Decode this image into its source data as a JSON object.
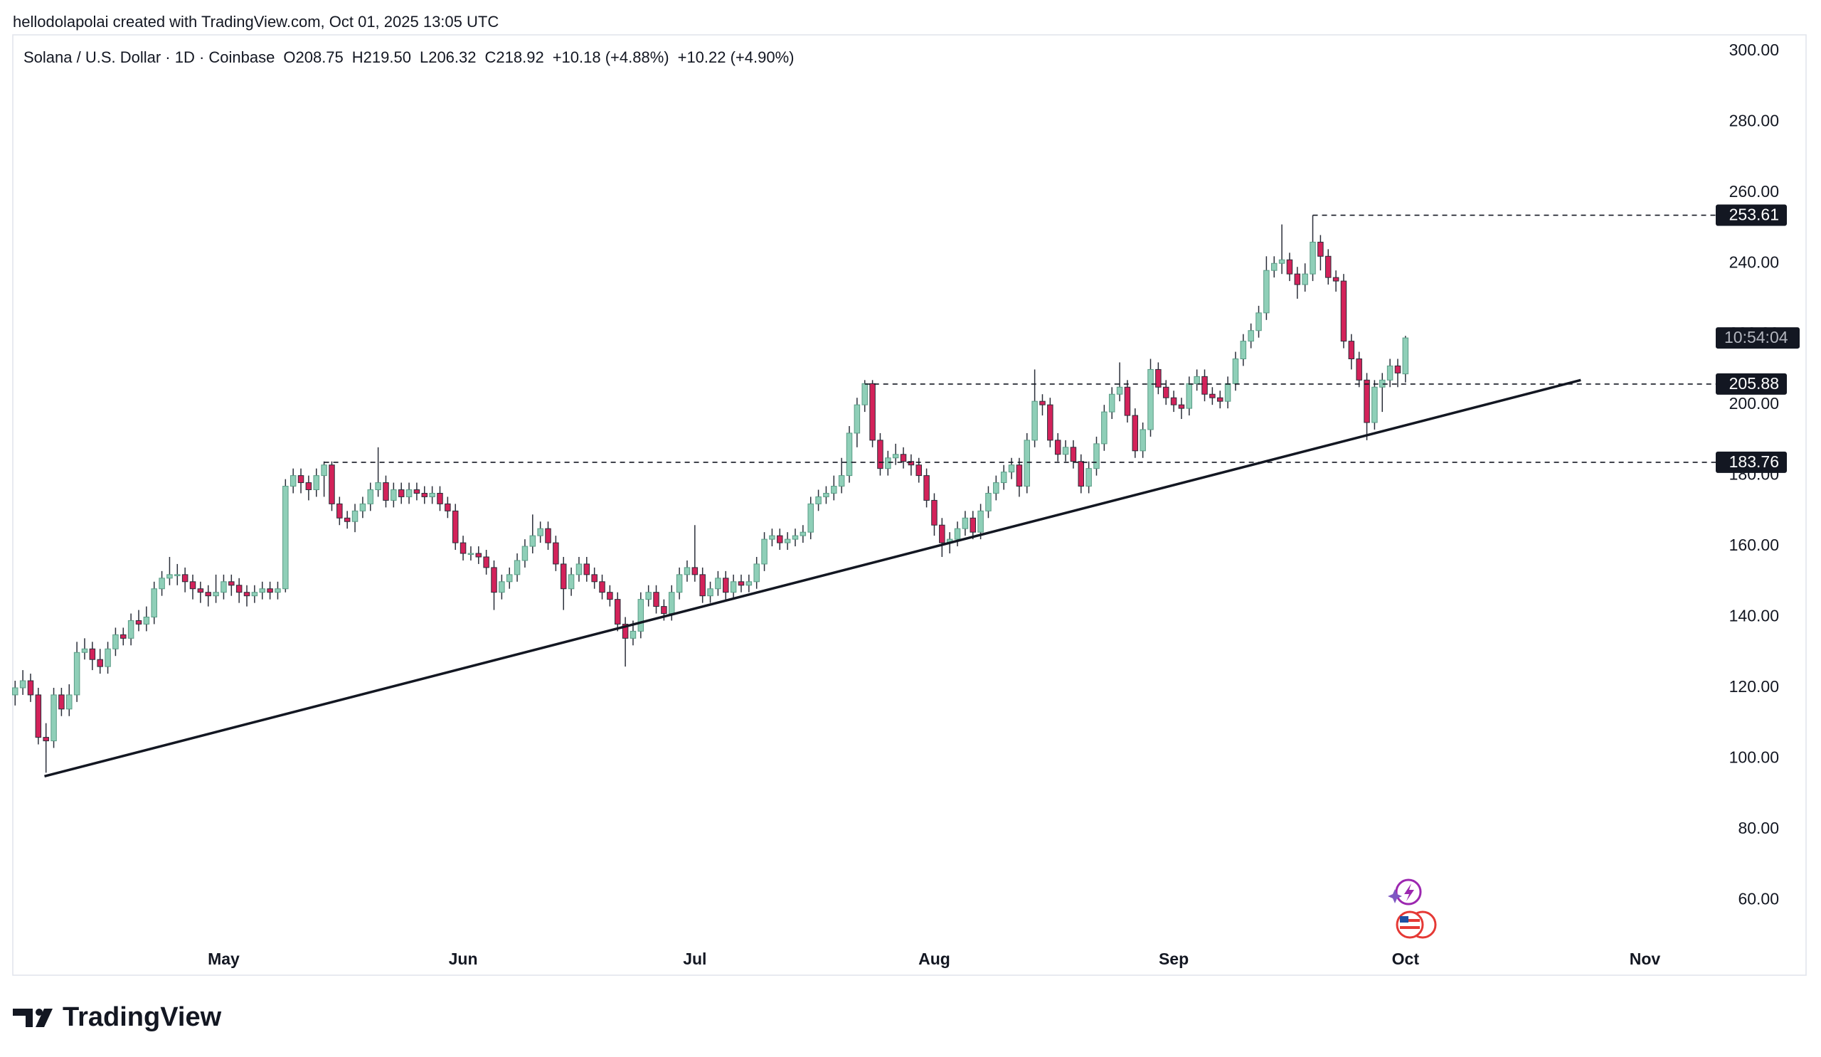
{
  "header": "hellodolapolai created with TradingView.com, Oct 01, 2025 13:05 UTC",
  "branding": "TradingView",
  "chart_data": {
    "type": "candlestick",
    "title": "Solana / U.S. Dollar · 1D · Coinbase",
    "legend_values": [
      "O208.75",
      "H219.50",
      "L206.32",
      "C218.92",
      "+10.18 (+4.88%)",
      "+10.22 (+4.90%)"
    ],
    "open": [
      118,
      120,
      122,
      118,
      106,
      105,
      118,
      114,
      118,
      130,
      131,
      128,
      126,
      131,
      135,
      134,
      139,
      138,
      140,
      148,
      151,
      152,
      152,
      150,
      148,
      147,
      146,
      147,
      150,
      149,
      147,
      146,
      147,
      148,
      147,
      148,
      177,
      180,
      178,
      176,
      180,
      183,
      172,
      168,
      167,
      170,
      172,
      176,
      178,
      173,
      176,
      174,
      176,
      175,
      174,
      175,
      172,
      170,
      161,
      158,
      158,
      157,
      154,
      147,
      150,
      152,
      156,
      160,
      163,
      165,
      161,
      155,
      148,
      152,
      155,
      152,
      150,
      147,
      145,
      138,
      134,
      136,
      145,
      147,
      143,
      141,
      147,
      152,
      154,
      152,
      146,
      148,
      151,
      147,
      150,
      149,
      150,
      155,
      162,
      163,
      161,
      162,
      163,
      164,
      172,
      174,
      175,
      177,
      180,
      192,
      200,
      206,
      190,
      182,
      185,
      186,
      184,
      183,
      180,
      173,
      166,
      161,
      162,
      165,
      168,
      164,
      170,
      175,
      178,
      181,
      183,
      177,
      190,
      201,
      200,
      190,
      186,
      188,
      184,
      177,
      182,
      189,
      198,
      203,
      205,
      197,
      187,
      193,
      210,
      205,
      202,
      200,
      199,
      206,
      208,
      203,
      202,
      201,
      206,
      213,
      218,
      221,
      226,
      238,
      240,
      241,
      237,
      234,
      237,
      246,
      242,
      236,
      235,
      218,
      213,
      207,
      195,
      205,
      207,
      211,
      208.75
    ],
    "high": [
      122,
      125,
      124,
      120,
      110,
      120,
      120,
      121,
      133,
      134,
      133,
      131,
      133,
      137,
      137,
      141,
      142,
      143,
      150,
      153,
      157,
      155,
      154,
      152,
      150,
      149,
      152,
      152,
      152,
      151,
      149,
      149,
      150,
      150,
      150,
      179,
      182,
      182,
      180,
      182,
      184,
      184,
      174,
      170,
      172,
      174,
      178,
      188,
      180,
      178,
      178,
      178,
      178,
      177,
      177,
      177,
      174,
      172,
      163,
      160,
      160,
      159,
      156,
      152,
      154,
      158,
      162,
      169,
      167,
      167,
      163,
      157,
      154,
      157,
      157,
      154,
      152,
      149,
      147,
      140,
      139,
      147,
      149,
      149,
      145,
      149,
      154,
      156,
      166,
      154,
      150,
      153,
      153,
      152,
      152,
      152,
      157,
      164,
      165,
      165,
      164,
      165,
      166,
      174,
      176,
      177,
      180,
      185,
      194,
      202,
      207,
      207,
      192,
      187,
      189,
      188,
      186,
      185,
      182,
      175,
      168,
      164,
      167,
      170,
      170,
      172,
      177,
      180,
      183,
      185,
      185,
      192,
      210,
      203,
      202,
      192,
      190,
      190,
      186,
      184,
      191,
      200,
      205,
      212,
      207,
      199,
      195,
      213,
      212,
      207,
      204,
      202,
      208,
      210,
      210,
      205,
      204,
      208,
      215,
      220,
      223,
      228,
      242,
      242,
      251,
      243,
      239,
      240,
      253.61,
      248,
      244,
      238,
      237,
      220,
      215,
      209,
      207,
      209,
      213,
      213,
      219.5
    ],
    "low": [
      115,
      118,
      116,
      104,
      96,
      103,
      112,
      112,
      116,
      128,
      125,
      124,
      124,
      129,
      132,
      132,
      136,
      136,
      138,
      146,
      149,
      149,
      147,
      145,
      144,
      143,
      144,
      145,
      146,
      144,
      143,
      144,
      145,
      145,
      145,
      147,
      175,
      175,
      173,
      174,
      174,
      170,
      166,
      165,
      164,
      168,
      170,
      174,
      171,
      171,
      172,
      172,
      173,
      172,
      172,
      170,
      168,
      159,
      156,
      156,
      155,
      152,
      142,
      145,
      148,
      150,
      154,
      158,
      161,
      159,
      153,
      142,
      146,
      150,
      150,
      148,
      145,
      143,
      136,
      126,
      132,
      134,
      143,
      141,
      139,
      139,
      145,
      150,
      150,
      144,
      144,
      146,
      145,
      145,
      147,
      147,
      148,
      153,
      160,
      159,
      159,
      160,
      161,
      162,
      170,
      172,
      173,
      175,
      178,
      188,
      198,
      188,
      180,
      180,
      183,
      182,
      180,
      178,
      171,
      163,
      157,
      158,
      160,
      163,
      162,
      162,
      168,
      173,
      176,
      179,
      174,
      175,
      188,
      197,
      188,
      184,
      184,
      182,
      175,
      175,
      180,
      187,
      196,
      201,
      195,
      185,
      185,
      191,
      203,
      200,
      198,
      196,
      197,
      204,
      201,
      200,
      199,
      199,
      204,
      211,
      216,
      219,
      224,
      236,
      237,
      235,
      230,
      232,
      235,
      238,
      234,
      232,
      216,
      210,
      205,
      190,
      193,
      198,
      205,
      205,
      206.32
    ],
    "close": [
      120,
      122,
      118,
      106,
      105,
      118,
      114,
      118,
      130,
      131,
      128,
      126,
      131,
      135,
      134,
      139,
      138,
      140,
      148,
      151,
      152,
      152,
      150,
      148,
      147,
      146,
      147,
      150,
      149,
      147,
      146,
      147,
      148,
      147,
      148,
      177,
      180,
      178,
      176,
      180,
      183,
      172,
      168,
      167,
      170,
      172,
      176,
      178,
      173,
      176,
      174,
      176,
      175,
      174,
      175,
      172,
      170,
      161,
      158,
      158,
      157,
      154,
      147,
      150,
      152,
      156,
      160,
      163,
      165,
      161,
      155,
      148,
      152,
      155,
      152,
      150,
      147,
      145,
      138,
      134,
      136,
      145,
      147,
      143,
      141,
      147,
      152,
      154,
      152,
      146,
      148,
      151,
      147,
      150,
      149,
      150,
      155,
      162,
      163,
      161,
      162,
      163,
      164,
      172,
      174,
      175,
      177,
      180,
      192,
      200,
      206,
      190,
      182,
      185,
      186,
      184,
      183,
      180,
      173,
      166,
      161,
      162,
      165,
      168,
      164,
      170,
      175,
      178,
      181,
      183,
      177,
      190,
      201,
      200,
      190,
      186,
      188,
      184,
      177,
      182,
      189,
      198,
      203,
      205,
      197,
      187,
      193,
      210,
      205,
      202,
      200,
      199,
      206,
      208,
      203,
      202,
      201,
      206,
      213,
      218,
      221,
      226,
      238,
      240,
      241,
      237,
      234,
      237,
      246,
      242,
      236,
      235,
      218,
      213,
      207,
      195,
      205,
      207,
      211,
      209,
      218.92
    ],
    "up_color": "#8fcfb8",
    "down_color": "#d3225a",
    "xlim": [
      -0.3,
      219.8
    ],
    "xticks": [
      {
        "value": 27,
        "label": "May"
      },
      {
        "value": 58,
        "label": "Jun"
      },
      {
        "value": 88,
        "label": "Jul"
      },
      {
        "value": 119,
        "label": "Aug"
      },
      {
        "value": 150,
        "label": "Sep"
      },
      {
        "value": 180,
        "label": "Oct"
      },
      {
        "value": 211,
        "label": "Nov"
      }
    ],
    "ylim": [
      38.75,
      304.6
    ],
    "yticks": [
      {
        "value": 60,
        "label": "60.00"
      },
      {
        "value": 80,
        "label": "80.00"
      },
      {
        "value": 100,
        "label": "100.00"
      },
      {
        "value": 120,
        "label": "120.00"
      },
      {
        "value": 140,
        "label": "140.00"
      },
      {
        "value": 160,
        "label": "160.00"
      },
      {
        "value": 180,
        "label": "180.00"
      },
      {
        "value": 200,
        "label": "200.00"
      },
      {
        "value": 220,
        "label": "220.00"
      },
      {
        "value": 240,
        "label": "240.00"
      },
      {
        "value": 260,
        "label": "260.00"
      },
      {
        "value": 280,
        "label": "280.00"
      },
      {
        "value": 300,
        "label": "300.00"
      }
    ],
    "levels": [
      {
        "value": 253.61,
        "from": 168
      },
      {
        "value": 205.88,
        "from": 110
      },
      {
        "value": 183.76,
        "from": 40
      }
    ],
    "countdown": "10:54:04",
    "trendline": {
      "x": [
        3.8,
        202.7
      ],
      "y": [
        95,
        207
      ]
    }
  }
}
